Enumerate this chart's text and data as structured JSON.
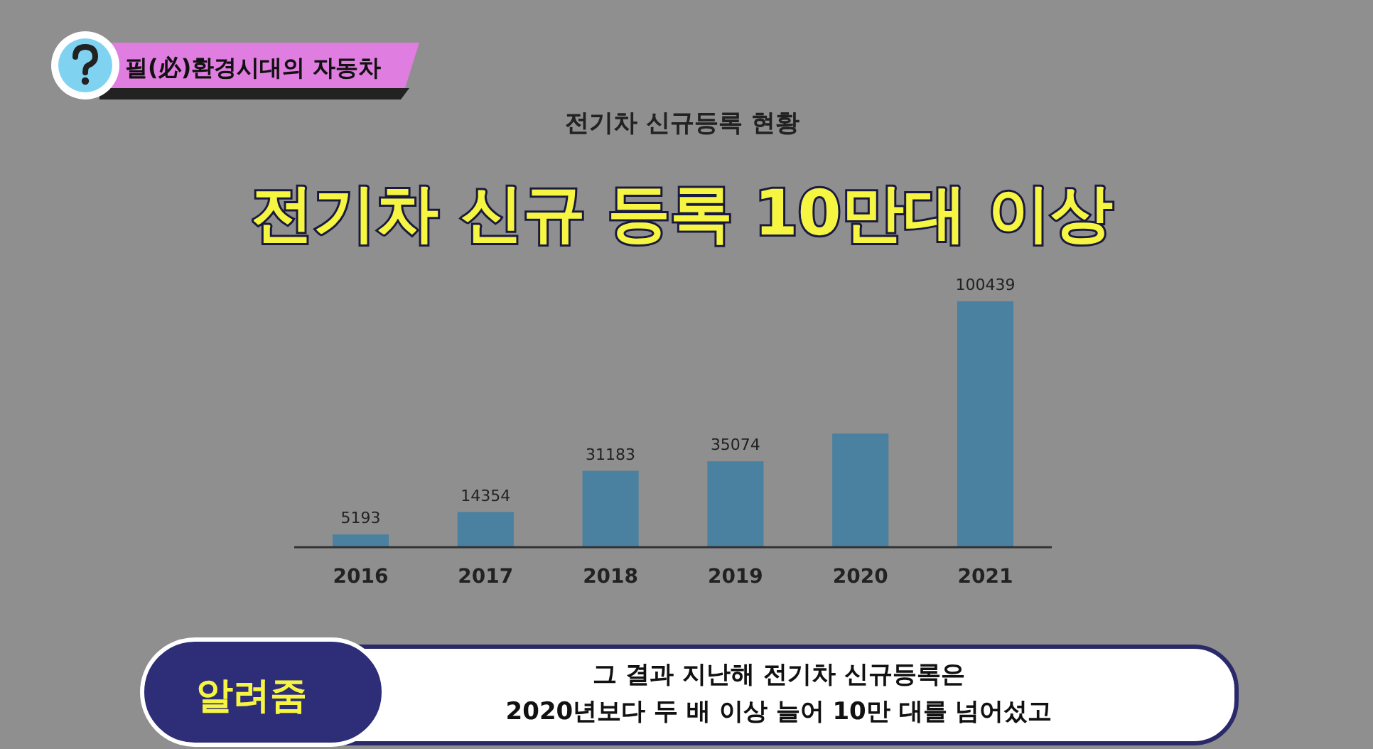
{
  "chart_data": {
    "type": "bar",
    "title": "전기차 신규등록 현황",
    "categories": [
      "2016",
      "2017",
      "2018",
      "2019",
      "2020",
      "2021"
    ],
    "values": [
      5193,
      14354,
      31183,
      35074,
      46400,
      100439
    ],
    "value_labels": [
      "5193",
      "14354",
      "31183",
      "35074",
      null,
      "100439"
    ],
    "color": "#4a80a0",
    "annotations": [
      "필(必)환경시대의 자동차",
      "전기차 신규 등록 10만대 이상",
      "알려줌",
      "그 결과 지난해  전기차 신규등록은",
      "2020년보다 두 배 이상 늘어 10만 대를 넘어섰고"
    ]
  }
}
